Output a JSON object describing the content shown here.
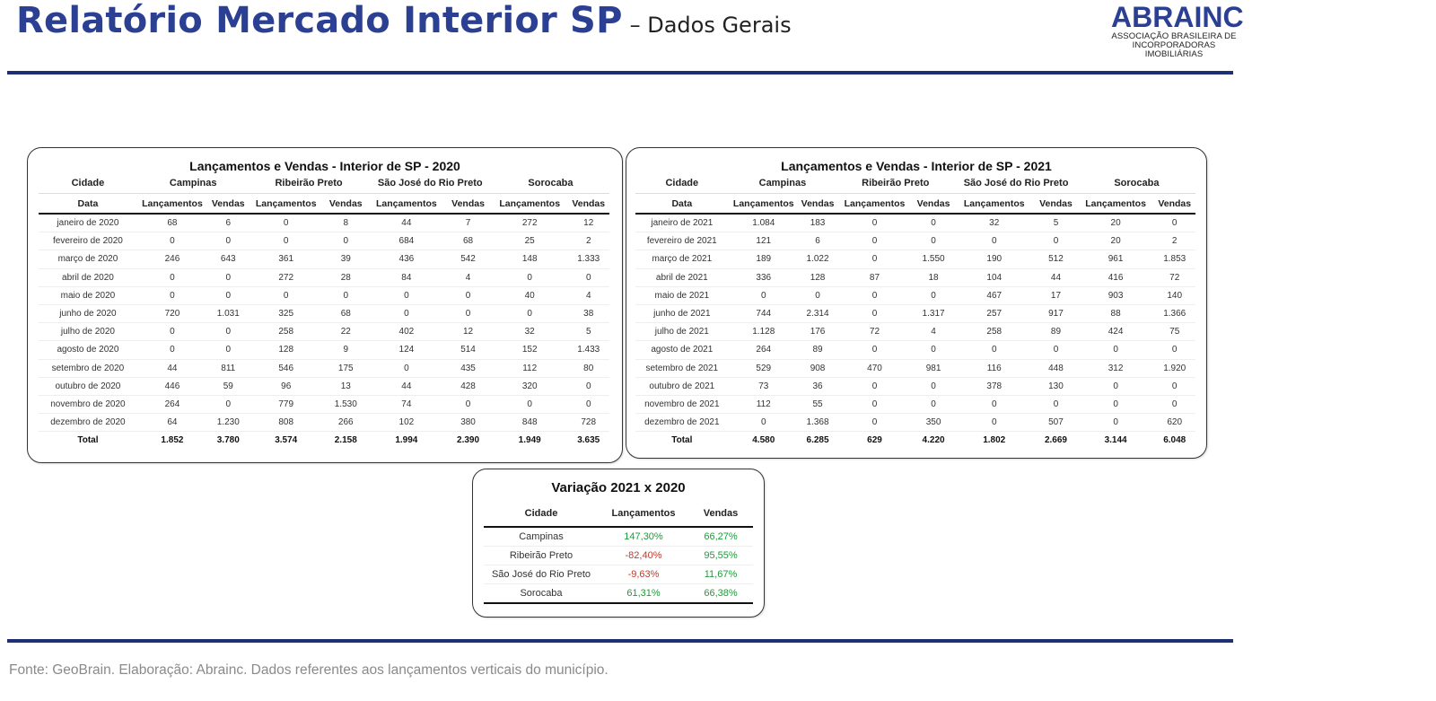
{
  "header": {
    "title_main": "Relatório Mercado Interior SP",
    "title_sub": "– Dados Gerais"
  },
  "logo": {
    "word": "ABRAINC",
    "line1": "ASSOCIAÇÃO BRASILEIRA DE",
    "line2": "INCORPORADORAS IMOBILIÁRIAS"
  },
  "table2020": {
    "title": "Lançamentos e Vendas - Interior de SP - 2020",
    "city_label": "Cidade",
    "date_label": "Data",
    "cities": [
      "Campinas",
      "Ribeirão Preto",
      "São José do Rio Preto",
      "Sorocaba"
    ],
    "col_launch": "Lançamentos",
    "col_sales": "Vendas",
    "rows": [
      [
        "janeiro de 2020",
        "68",
        "6",
        "0",
        "8",
        "44",
        "7",
        "272",
        "12"
      ],
      [
        "fevereiro de 2020",
        "0",
        "0",
        "0",
        "0",
        "684",
        "68",
        "25",
        "2"
      ],
      [
        "março de 2020",
        "246",
        "643",
        "361",
        "39",
        "436",
        "542",
        "148",
        "1.333"
      ],
      [
        "abril de 2020",
        "0",
        "0",
        "272",
        "28",
        "84",
        "4",
        "0",
        "0"
      ],
      [
        "maio de 2020",
        "0",
        "0",
        "0",
        "0",
        "0",
        "0",
        "40",
        "4"
      ],
      [
        "junho de 2020",
        "720",
        "1.031",
        "325",
        "68",
        "0",
        "0",
        "0",
        "38"
      ],
      [
        "julho de 2020",
        "0",
        "0",
        "258",
        "22",
        "402",
        "12",
        "32",
        "5"
      ],
      [
        "agosto de 2020",
        "0",
        "0",
        "128",
        "9",
        "124",
        "514",
        "152",
        "1.433"
      ],
      [
        "setembro de 2020",
        "44",
        "811",
        "546",
        "175",
        "0",
        "435",
        "112",
        "80"
      ],
      [
        "outubro de 2020",
        "446",
        "59",
        "96",
        "13",
        "44",
        "428",
        "320",
        "0"
      ],
      [
        "novembro de 2020",
        "264",
        "0",
        "779",
        "1.530",
        "74",
        "0",
        "0",
        "0"
      ],
      [
        "dezembro de 2020",
        "64",
        "1.230",
        "808",
        "266",
        "102",
        "380",
        "848",
        "728"
      ]
    ],
    "total": [
      "Total",
      "1.852",
      "3.780",
      "3.574",
      "2.158",
      "1.994",
      "2.390",
      "1.949",
      "3.635"
    ]
  },
  "table2021": {
    "title": "Lançamentos e Vendas - Interior de SP - 2021",
    "city_label": "Cidade",
    "date_label": "Data",
    "cities": [
      "Campinas",
      "Ribeirão Preto",
      "São José do Rio Preto",
      "Sorocaba"
    ],
    "col_launch": "Lançamentos",
    "col_sales": "Vendas",
    "rows": [
      [
        "janeiro de 2021",
        "1.084",
        "183",
        "0",
        "0",
        "32",
        "5",
        "20",
        "0"
      ],
      [
        "fevereiro de 2021",
        "121",
        "6",
        "0",
        "0",
        "0",
        "0",
        "20",
        "2"
      ],
      [
        "março de 2021",
        "189",
        "1.022",
        "0",
        "1.550",
        "190",
        "512",
        "961",
        "1.853"
      ],
      [
        "abril de 2021",
        "336",
        "128",
        "87",
        "18",
        "104",
        "44",
        "416",
        "72"
      ],
      [
        "maio de 2021",
        "0",
        "0",
        "0",
        "0",
        "467",
        "17",
        "903",
        "140"
      ],
      [
        "junho de 2021",
        "744",
        "2.314",
        "0",
        "1.317",
        "257",
        "917",
        "88",
        "1.366"
      ],
      [
        "julho de 2021",
        "1.128",
        "176",
        "72",
        "4",
        "258",
        "89",
        "424",
        "75"
      ],
      [
        "agosto de 2021",
        "264",
        "89",
        "0",
        "0",
        "0",
        "0",
        "0",
        "0"
      ],
      [
        "setembro de 2021",
        "529",
        "908",
        "470",
        "981",
        "116",
        "448",
        "312",
        "1.920"
      ],
      [
        "outubro de 2021",
        "73",
        "36",
        "0",
        "0",
        "378",
        "130",
        "0",
        "0"
      ],
      [
        "novembro de 2021",
        "112",
        "55",
        "0",
        "0",
        "0",
        "0",
        "0",
        "0"
      ],
      [
        "dezembro de 2021",
        "0",
        "1.368",
        "0",
        "350",
        "0",
        "507",
        "0",
        "620"
      ]
    ],
    "total": [
      "Total",
      "4.580",
      "6.285",
      "629",
      "4.220",
      "1.802",
      "2.669",
      "3.144",
      "6.048"
    ]
  },
  "variation": {
    "title": "Variação 2021 x 2020",
    "headers": [
      "Cidade",
      "Lançamentos",
      "Vendas"
    ],
    "rows": [
      [
        "Campinas",
        "147,30%",
        "66,27%"
      ],
      [
        "Ribeirão Preto",
        "-82,40%",
        "95,55%"
      ],
      [
        "São José do Rio Preto",
        "-9,63%",
        "11,67%"
      ],
      [
        "Sorocaba",
        "61,31%",
        "66,38%"
      ]
    ],
    "colors": {
      "negative": "#c0392b",
      "positive": "#1e9b3a"
    }
  },
  "footer": {
    "source": "Fonte: GeoBrain. Elaboração: Abrainc. Dados referentes aos lançamentos verticais do município."
  }
}
